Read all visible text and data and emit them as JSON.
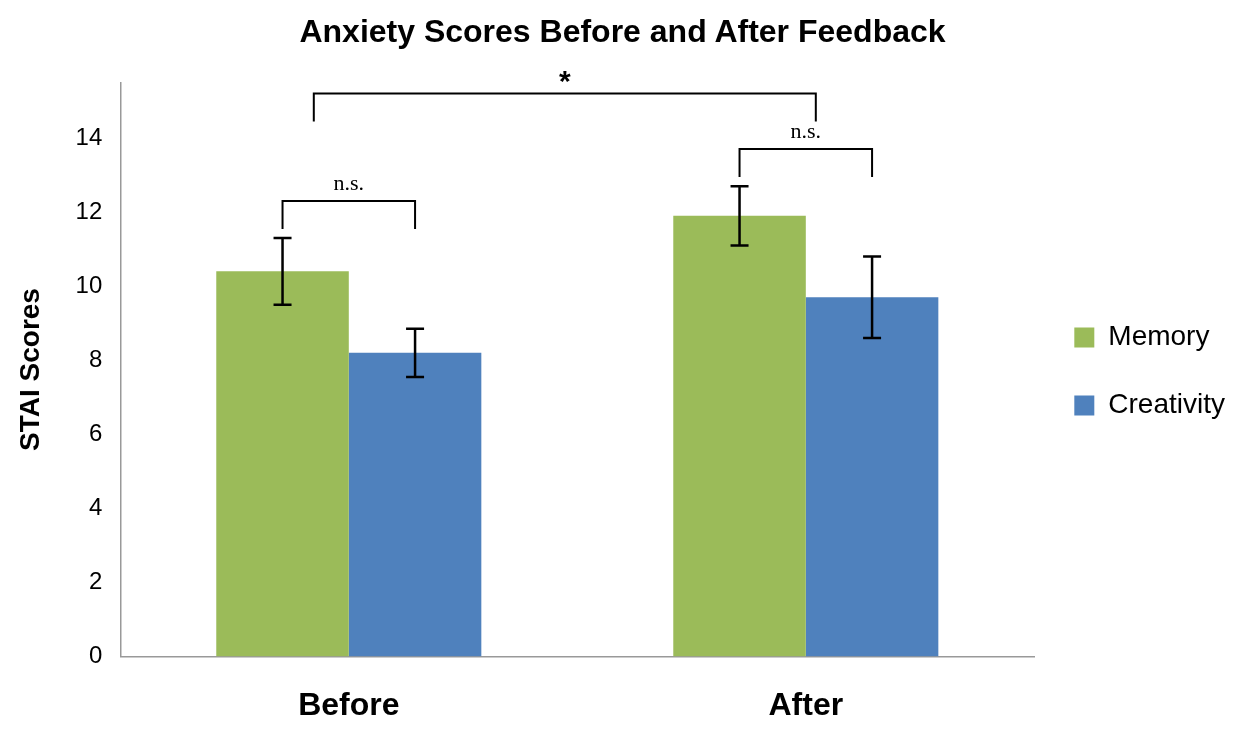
{
  "chart_data": {
    "type": "bar",
    "title": "Anxiety Scores Before and After Feedback",
    "ylabel": "STAI Scores",
    "categories": [
      "Before",
      "After"
    ],
    "series": [
      {
        "name": "Memory",
        "color": "#9bbb59",
        "values": [
          10.4,
          11.9
        ],
        "errors": [
          0.9,
          0.8
        ]
      },
      {
        "name": "Creativity",
        "color": "#4f81bd",
        "values": [
          8.2,
          9.7
        ],
        "errors": [
          0.65,
          1.1
        ]
      }
    ],
    "ylim": [
      0,
      15.5
    ],
    "yticks": [
      0,
      2,
      4,
      6,
      8,
      10,
      12,
      14
    ],
    "grid": false,
    "legend": "right",
    "annotations": [
      "*",
      "n.s.",
      "n.s."
    ]
  }
}
